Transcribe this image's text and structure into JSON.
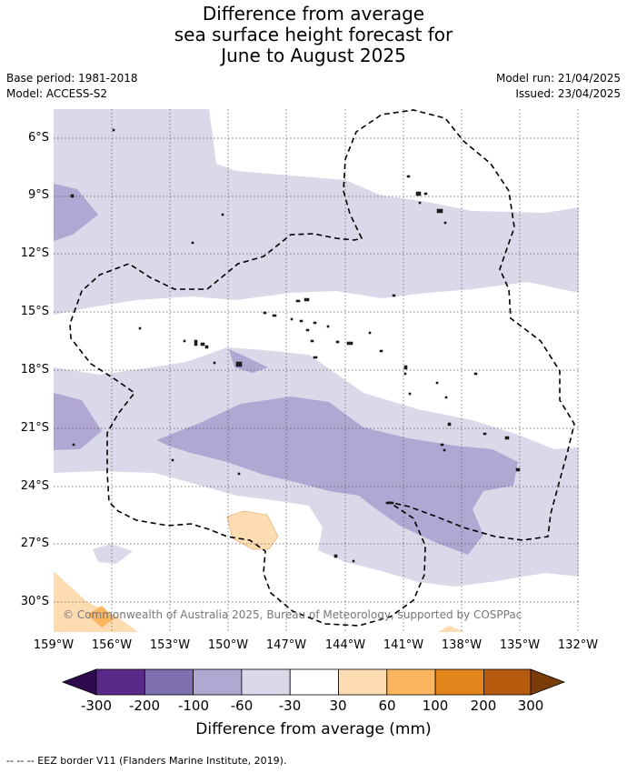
{
  "title_lines": [
    "Difference from average",
    "sea surface height forecast for",
    "June to August 2025"
  ],
  "meta_left": [
    "Base period: 1981-2018",
    "Model: ACCESS-S2"
  ],
  "meta_right": [
    "Model run: 21/04/2025",
    "Issued: 23/04/2025"
  ],
  "lat_labels": [
    "6°S",
    "9°S",
    "12°S",
    "15°S",
    "18°S",
    "21°S",
    "24°S",
    "27°S",
    "30°S"
  ],
  "lon_labels": [
    "159°W",
    "156°W",
    "153°W",
    "150°W",
    "147°W",
    "144°W",
    "141°W",
    "138°W",
    "135°W",
    "132°W"
  ],
  "copyright": "© Commonwealth of Australia 2025, Bureau of Meteorology, supported by COSPPac",
  "colorbar": {
    "labels": [
      "-300",
      "-200",
      "-100",
      "-60",
      "-30",
      "30",
      "60",
      "100",
      "200",
      "300"
    ],
    "colors": {
      "below": "#2d0b4e",
      "bins": [
        "#5a2a8a",
        "#7f6fae",
        "#b0a8d2",
        "#d9d9ea",
        "#ffffff",
        "#fddcb2",
        "#fbb55f",
        "#e3851b",
        "#b65a0e"
      ],
      "above": "#7a3d0a"
    },
    "title": "Difference from average (mm)"
  },
  "footnote": "--  --  -- EEZ border V11 (Flanders Marine Institute, 2019)."
}
